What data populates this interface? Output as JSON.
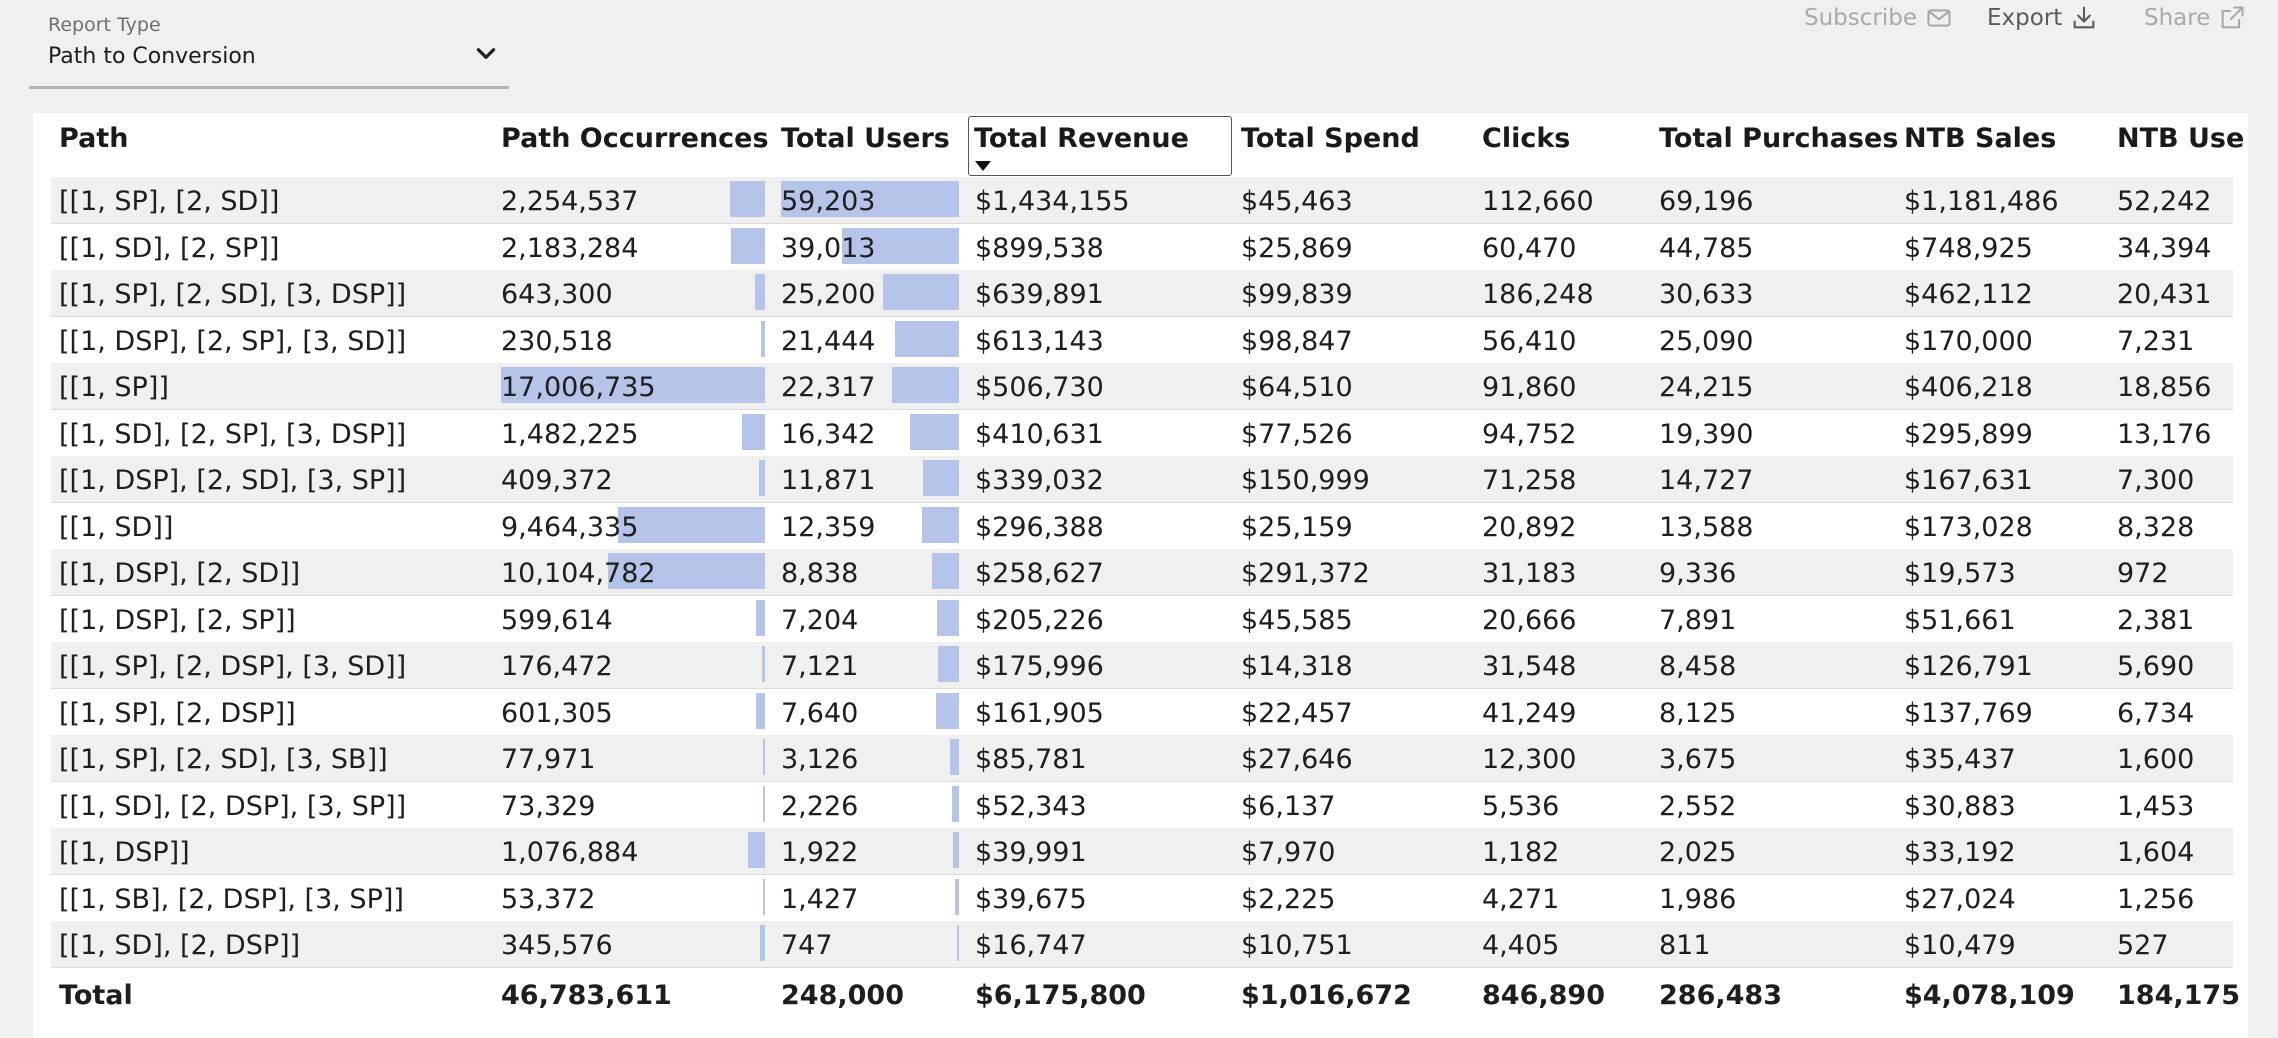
{
  "report_type": {
    "label": "Report Type",
    "value": "Path to Conversion"
  },
  "actions": {
    "subscribe": "Subscribe",
    "export": "Export",
    "share": "Share"
  },
  "columns": [
    "Path",
    "Path Occurrences",
    "Total Users",
    "Total Revenue",
    "Total Spend",
    "Clicks",
    "Total Purchases",
    "NTB Sales",
    "NTB Use"
  ],
  "sort": {
    "column": "Total Revenue",
    "direction": "descending"
  },
  "rows": [
    {
      "path": "[[1, SP], [2, SD]]",
      "occ": "2,254,537",
      "occ_v": 2254537,
      "users": "59,203",
      "users_v": 59203,
      "revenue": "$1,434,155",
      "spend": "$45,463",
      "clicks": "112,660",
      "purchases": "69,196",
      "ntb_sales": "$1,181,486",
      "ntb_users": "52,242"
    },
    {
      "path": "[[1, SD], [2, SP]]",
      "occ": "2,183,284",
      "occ_v": 2183284,
      "users": "39,013",
      "users_v": 39013,
      "revenue": "$899,538",
      "spend": "$25,869",
      "clicks": "60,470",
      "purchases": "44,785",
      "ntb_sales": "$748,925",
      "ntb_users": "34,394"
    },
    {
      "path": "[[1, SP], [2, SD], [3, DSP]]",
      "occ": "643,300",
      "occ_v": 643300,
      "users": "25,200",
      "users_v": 25200,
      "revenue": "$639,891",
      "spend": "$99,839",
      "clicks": "186,248",
      "purchases": "30,633",
      "ntb_sales": "$462,112",
      "ntb_users": "20,431"
    },
    {
      "path": "[[1, DSP], [2, SP], [3, SD]]",
      "occ": "230,518",
      "occ_v": 230518,
      "users": "21,444",
      "users_v": 21444,
      "revenue": "$613,143",
      "spend": "$98,847",
      "clicks": "56,410",
      "purchases": "25,090",
      "ntb_sales": "$170,000",
      "ntb_users": "7,231"
    },
    {
      "path": "[[1, SP]]",
      "occ": "17,006,735",
      "occ_v": 17006735,
      "users": "22,317",
      "users_v": 22317,
      "revenue": "$506,730",
      "spend": "$64,510",
      "clicks": "91,860",
      "purchases": "24,215",
      "ntb_sales": "$406,218",
      "ntb_users": "18,856"
    },
    {
      "path": "[[1, SD], [2, SP], [3, DSP]]",
      "occ": "1,482,225",
      "occ_v": 1482225,
      "users": "16,342",
      "users_v": 16342,
      "revenue": "$410,631",
      "spend": "$77,526",
      "clicks": "94,752",
      "purchases": "19,390",
      "ntb_sales": "$295,899",
      "ntb_users": "13,176"
    },
    {
      "path": "[[1, DSP], [2, SD], [3, SP]]",
      "occ": "409,372",
      "occ_v": 409372,
      "users": "11,871",
      "users_v": 11871,
      "revenue": "$339,032",
      "spend": "$150,999",
      "clicks": "71,258",
      "purchases": "14,727",
      "ntb_sales": "$167,631",
      "ntb_users": "7,300"
    },
    {
      "path": "[[1, SD]]",
      "occ": "9,464,335",
      "occ_v": 9464335,
      "users": "12,359",
      "users_v": 12359,
      "revenue": "$296,388",
      "spend": "$25,159",
      "clicks": "20,892",
      "purchases": "13,588",
      "ntb_sales": "$173,028",
      "ntb_users": "8,328"
    },
    {
      "path": "[[1, DSP], [2, SD]]",
      "occ": "10,104,782",
      "occ_v": 10104782,
      "users": "8,838",
      "users_v": 8838,
      "revenue": "$258,627",
      "spend": "$291,372",
      "clicks": "31,183",
      "purchases": "9,336",
      "ntb_sales": "$19,573",
      "ntb_users": "972"
    },
    {
      "path": "[[1, DSP], [2, SP]]",
      "occ": "599,614",
      "occ_v": 599614,
      "users": "7,204",
      "users_v": 7204,
      "revenue": "$205,226",
      "spend": "$45,585",
      "clicks": "20,666",
      "purchases": "7,891",
      "ntb_sales": "$51,661",
      "ntb_users": "2,381"
    },
    {
      "path": "[[1, SP], [2, DSP], [3, SD]]",
      "occ": "176,472",
      "occ_v": 176472,
      "users": "7,121",
      "users_v": 7121,
      "revenue": "$175,996",
      "spend": "$14,318",
      "clicks": "31,548",
      "purchases": "8,458",
      "ntb_sales": "$126,791",
      "ntb_users": "5,690"
    },
    {
      "path": "[[1, SP], [2, DSP]]",
      "occ": "601,305",
      "occ_v": 601305,
      "users": "7,640",
      "users_v": 7640,
      "revenue": "$161,905",
      "spend": "$22,457",
      "clicks": "41,249",
      "purchases": "8,125",
      "ntb_sales": "$137,769",
      "ntb_users": "6,734"
    },
    {
      "path": "[[1, SP], [2, SD], [3, SB]]",
      "occ": "77,971",
      "occ_v": 77971,
      "users": "3,126",
      "users_v": 3126,
      "revenue": "$85,781",
      "spend": "$27,646",
      "clicks": "12,300",
      "purchases": "3,675",
      "ntb_sales": "$35,437",
      "ntb_users": "1,600"
    },
    {
      "path": "[[1, SD], [2, DSP], [3, SP]]",
      "occ": "73,329",
      "occ_v": 73329,
      "users": "2,226",
      "users_v": 2226,
      "revenue": "$52,343",
      "spend": "$6,137",
      "clicks": "5,536",
      "purchases": "2,552",
      "ntb_sales": "$30,883",
      "ntb_users": "1,453"
    },
    {
      "path": "[[1, DSP]]",
      "occ": "1,076,884",
      "occ_v": 1076884,
      "users": "1,922",
      "users_v": 1922,
      "revenue": "$39,991",
      "spend": "$7,970",
      "clicks": "1,182",
      "purchases": "2,025",
      "ntb_sales": "$33,192",
      "ntb_users": "1,604"
    },
    {
      "path": "[[1, SB], [2, DSP], [3, SP]]",
      "occ": "53,372",
      "occ_v": 53372,
      "users": "1,427",
      "users_v": 1427,
      "revenue": "$39,675",
      "spend": "$2,225",
      "clicks": "4,271",
      "purchases": "1,986",
      "ntb_sales": "$27,024",
      "ntb_users": "1,256"
    },
    {
      "path": "[[1, SD], [2, DSP]]",
      "occ": "345,576",
      "occ_v": 345576,
      "users": "747",
      "users_v": 747,
      "revenue": "$16,747",
      "spend": "$10,751",
      "clicks": "4,405",
      "purchases": "811",
      "ntb_sales": "$10,479",
      "ntb_users": "527"
    }
  ],
  "totals": {
    "label": "Total",
    "occ": "46,783,611",
    "users": "248,000",
    "revenue": "$6,175,800",
    "spend": "$1,016,672",
    "clicks": "846,890",
    "purchases": "286,483",
    "ntb_sales": "$4,078,109",
    "ntb_users": "184,175"
  },
  "colors": {
    "bar": "#b6c4ea",
    "row_alt": "#f0f0f0",
    "background": "#f0f0f0"
  }
}
